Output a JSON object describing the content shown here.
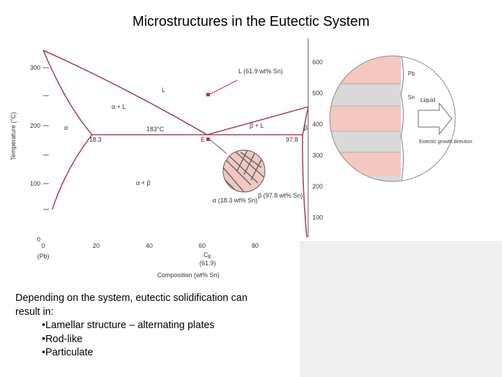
{
  "title": "Microstructures in the Eutectic System",
  "body": [
    "Depending on the system, eutectic solidification can",
    "result in:",
    "•Lamellar structure – alternating plates",
    "•Rod-like",
    "•Particulate"
  ],
  "diagram": {
    "y_celsius_ticks": [
      "300",
      "200",
      "100",
      "0"
    ],
    "y_fahrenheit_ticks": [
      "600",
      "500",
      "400",
      "300",
      "200",
      "100"
    ],
    "x_ticks": [
      "0",
      "20",
      "40",
      "60",
      "80"
    ],
    "x_end_label": "(Pb)",
    "x_axis_label": "Composition (wt% Sn)",
    "y_axis_label": "Temperature (°C)",
    "labels": {
      "L": "L",
      "alpha_L": "α + L",
      "alpha": "α",
      "beta_L": "β + L",
      "beta": "β",
      "alpha_beta": "α + β",
      "eutectic_temp": "183°C",
      "c_alpha": "18.3",
      "c_beta": "97.8",
      "E": "E",
      "CE": "C",
      "CE_sub": "E",
      "CE_value": "(61.9)",
      "liquid_comp": "L (61.9 wt% Sn)",
      "alpha_comp": "α (18.3 wt% Sn)",
      "beta_comp": "β (97.8 wt% Sn)"
    }
  },
  "growth": {
    "liquid": "Liquid",
    "direction": "Eutectic growth direction",
    "pb": "Pb",
    "sn": "Sn"
  }
}
